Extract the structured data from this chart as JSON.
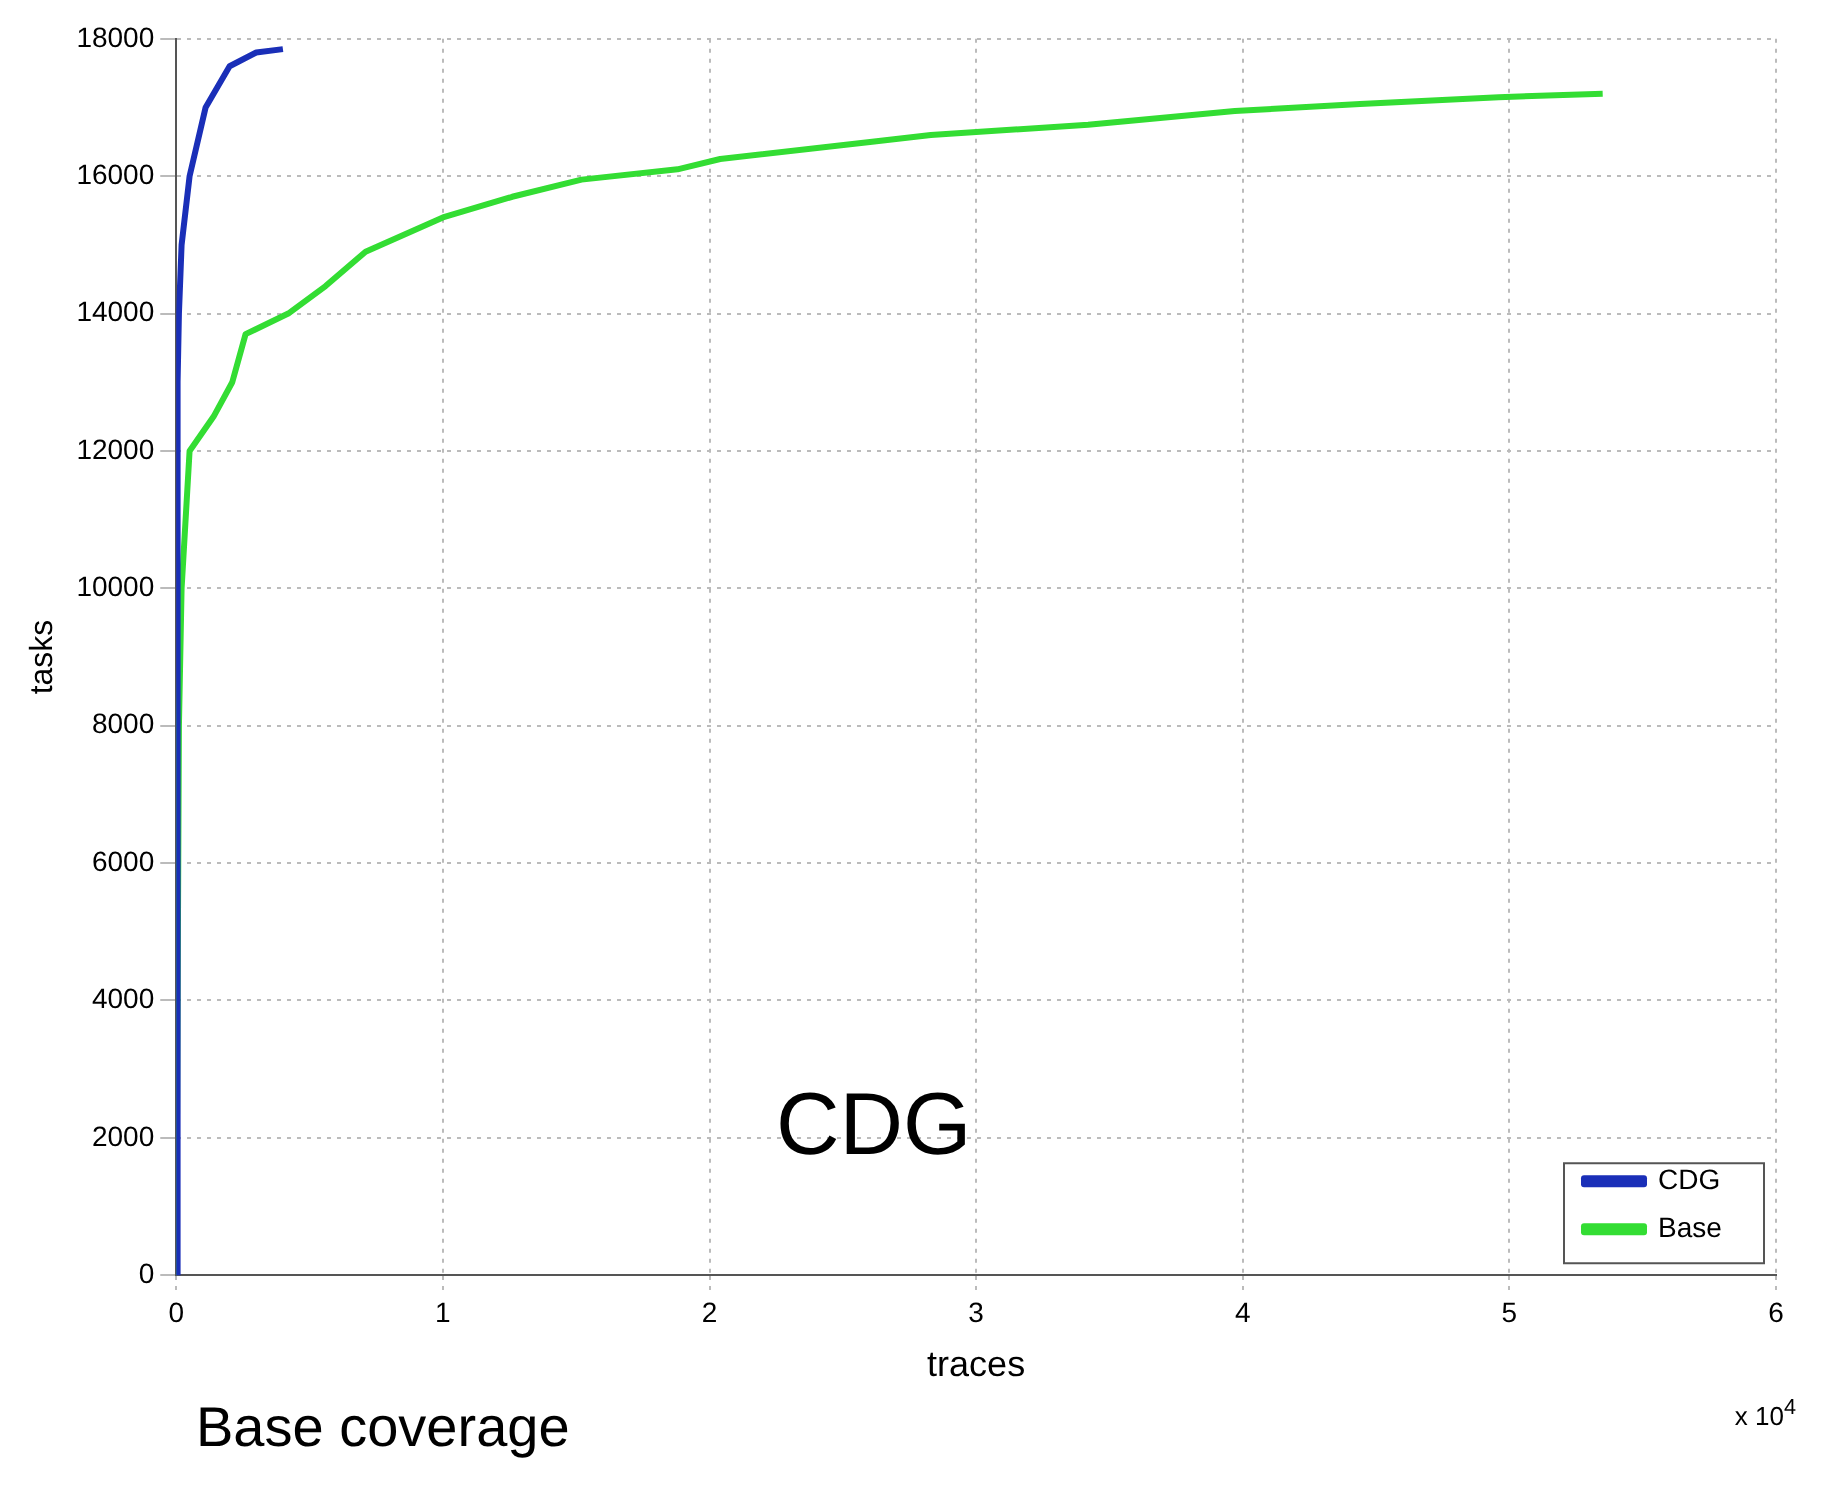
{
  "chart_data": {
    "type": "line",
    "xlabel": "traces",
    "ylabel": "tasks",
    "series": [
      {
        "name": "CDG",
        "color": "#1a2fb8",
        "x": [
          0,
          0.005,
          0.01,
          0.02,
          0.05,
          0.11,
          0.2,
          0.3,
          0.4
        ],
        "values": [
          0,
          13000,
          14000,
          15000,
          16000,
          17000,
          17600,
          17800,
          17850
        ]
      },
      {
        "name": "Base",
        "color": "#33dd33",
        "x": [
          0,
          0.01,
          0.02,
          0.05,
          0.14,
          0.21,
          0.26,
          0.42,
          0.56,
          0.71,
          1.0,
          1.26,
          1.52,
          1.88,
          2.04,
          2.61,
          2.83,
          3.42,
          3.97,
          4.44,
          4.96,
          5.35
        ],
        "values": [
          0,
          8000,
          10000,
          12000,
          12500,
          13000,
          13700,
          14000,
          14400,
          14900,
          15400,
          15700,
          15950,
          16100,
          16250,
          16500,
          16600,
          16750,
          16950,
          17050,
          17150,
          17200
        ]
      }
    ],
    "xlim": [
      0,
      6
    ],
    "xticks": [
      0,
      1,
      2,
      3,
      4,
      5,
      6
    ],
    "ylim": [
      0,
      18000
    ],
    "yticks": [
      0,
      2000,
      4000,
      6000,
      8000,
      10000,
      12000,
      14000,
      16000,
      18000
    ],
    "grid": true,
    "legend": "bottom right",
    "marker": "none",
    "line_style": "solid",
    "annotations": [
      "CDG",
      "x 10$^{4}$",
      "Base coverage"
    ]
  }
}
